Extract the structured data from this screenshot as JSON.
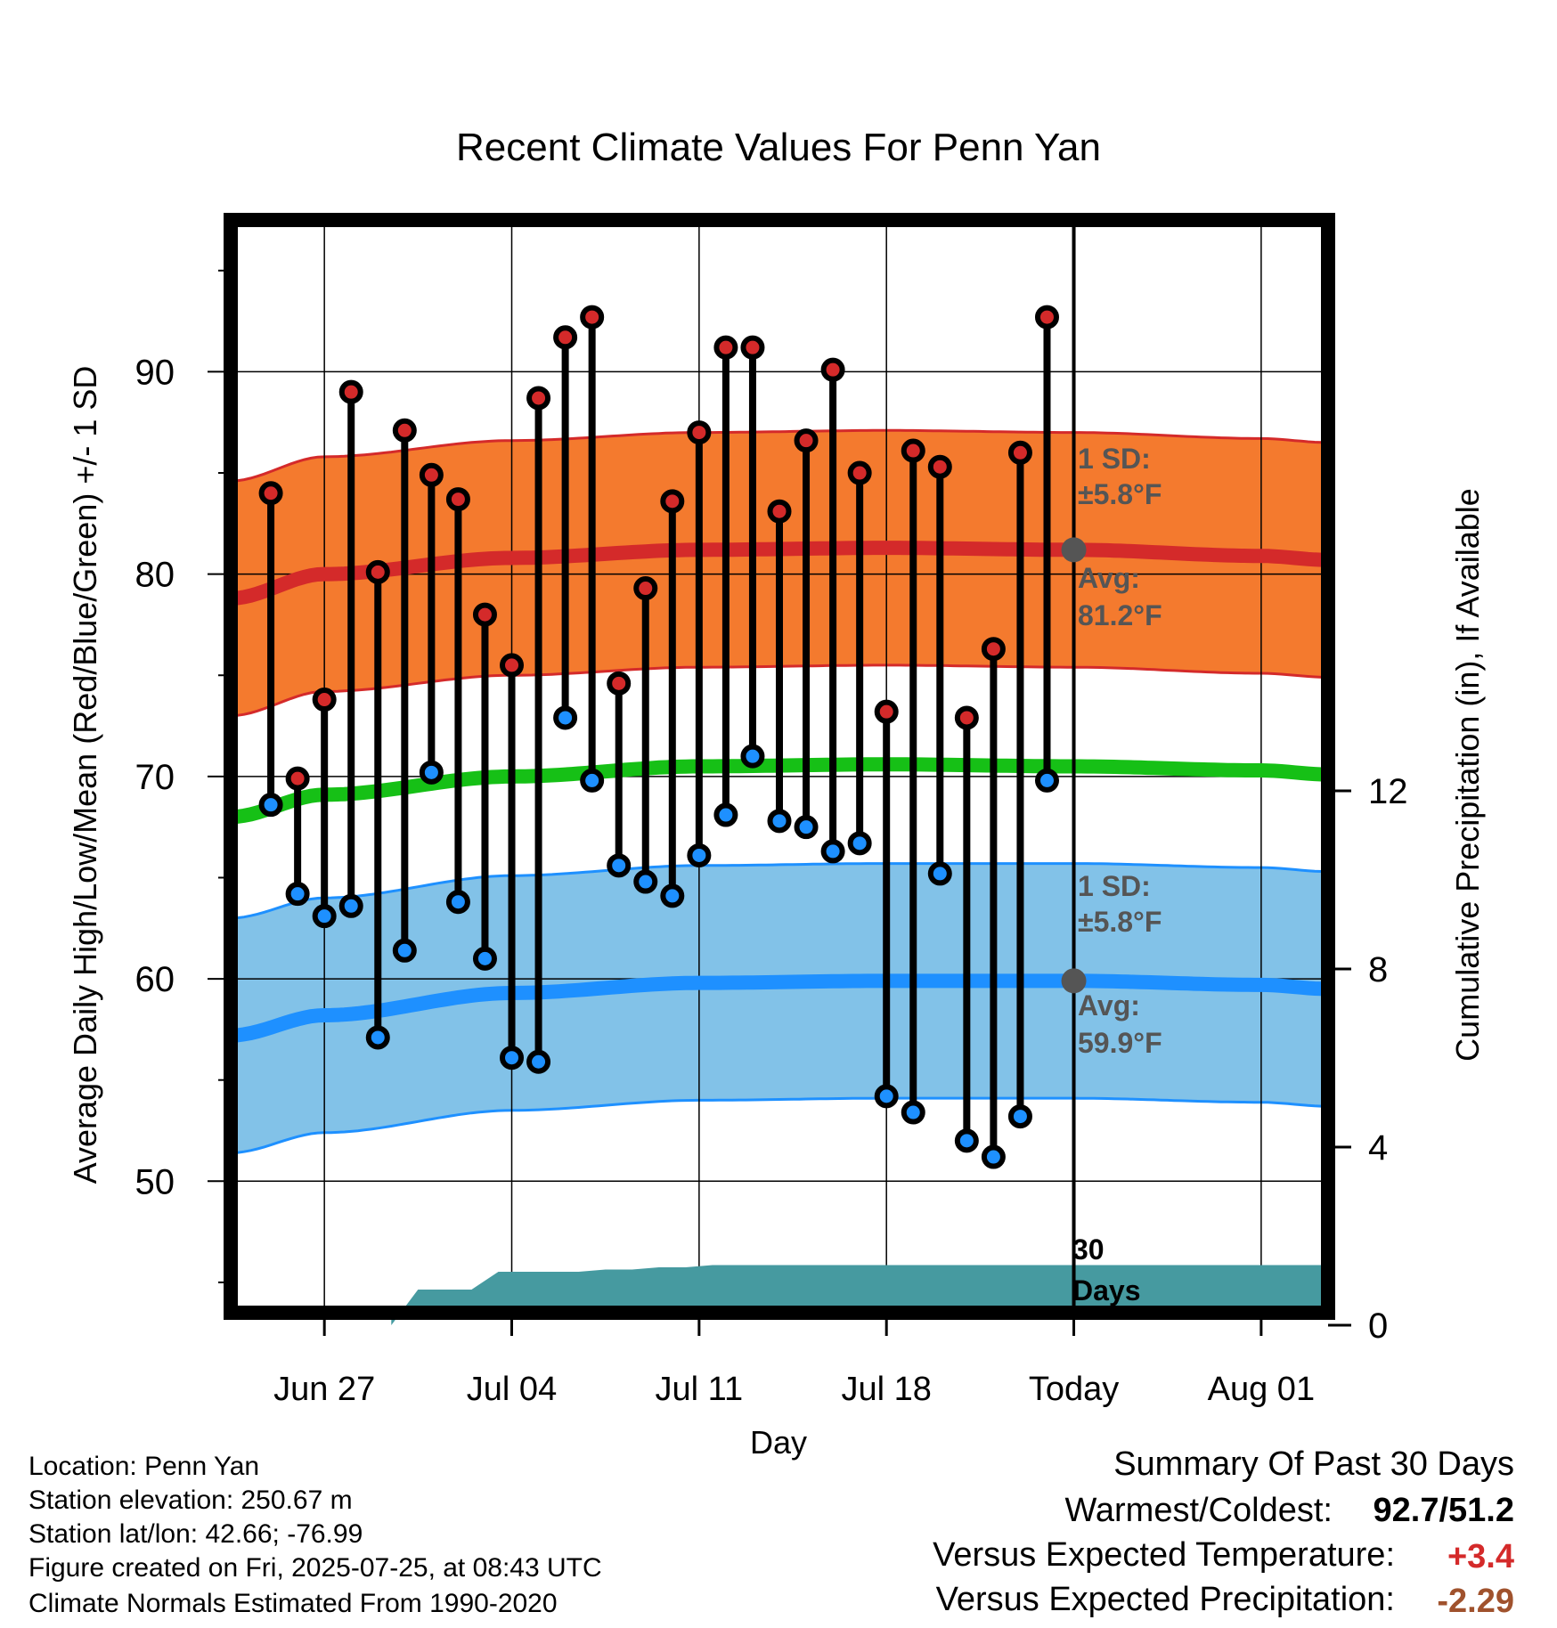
{
  "chart_data": {
    "type": "line",
    "title": "Recent Climate Values For Penn Yan",
    "xlabel": "Day",
    "ylabel": "Average Daily High/Low/Mean (Red/Blue/Green) +/- 1 SD",
    "y2label": "Cumulative Precipitation (in), If Available",
    "x_tick_labels": [
      "Jun 27",
      "Jul 04",
      "Jul 11",
      "Jul 18",
      "Today",
      "Aug 01"
    ],
    "y_tick_labels": [
      "50",
      "60",
      "70",
      "80",
      "90"
    ],
    "y2_tick_labels": [
      "0",
      "4",
      "8",
      "12"
    ],
    "ylim": [
      43.5,
      97.5
    ],
    "y2lim": [
      0,
      12
    ],
    "x_range_days": [
      -3.5,
      37.5
    ],
    "x_tick_days": [
      0,
      7,
      14,
      21,
      28,
      35
    ],
    "today_day": 28,
    "x_days": [
      -2,
      -1,
      0,
      1,
      2,
      3,
      4,
      5,
      6,
      7,
      8,
      9,
      10,
      11,
      12,
      13,
      14,
      15,
      16,
      17,
      18,
      19,
      20,
      21,
      22,
      23,
      24,
      25,
      26,
      27
    ],
    "series": [
      {
        "name": "High",
        "color": "#d42a2a",
        "values": [
          84.0,
          69.9,
          73.8,
          89.0,
          80.1,
          87.1,
          84.9,
          83.7,
          78.0,
          75.5,
          88.7,
          91.7,
          92.7,
          74.6,
          79.3,
          83.6,
          87.0,
          91.2,
          91.2,
          83.1,
          86.6,
          90.1,
          85.0,
          73.2,
          86.1,
          85.3,
          72.9,
          76.3,
          86.0,
          92.7
        ]
      },
      {
        "name": "Low",
        "color": "#1e90ff",
        "values": [
          68.6,
          64.2,
          63.1,
          63.6,
          57.1,
          61.4,
          70.2,
          63.8,
          61.0,
          56.1,
          55.9,
          72.9,
          69.8,
          65.6,
          64.8,
          64.1,
          66.1,
          68.1,
          71.0,
          67.8,
          67.5,
          66.3,
          66.7,
          54.2,
          53.4,
          65.2,
          52.0,
          51.2,
          53.2,
          69.8
        ]
      }
    ],
    "normals": {
      "days": [
        -3.5,
        0,
        7,
        14,
        21,
        28,
        35,
        37.5
      ],
      "high_avg": [
        78.8,
        80.0,
        80.8,
        81.2,
        81.3,
        81.2,
        80.9,
        80.7
      ],
      "low_avg": [
        57.2,
        58.2,
        59.3,
        59.8,
        59.9,
        59.9,
        59.7,
        59.5
      ],
      "mean_avg": [
        68.0,
        69.1,
        70.0,
        70.5,
        70.6,
        70.5,
        70.3,
        70.1
      ],
      "sd": 5.8,
      "high_color": "#d42a2a",
      "high_band_color": "#f47a2e",
      "low_color": "#1e90ff",
      "low_band_color": "#82c2e8",
      "mean_color": "#16c016"
    },
    "precip": {
      "color": "#469aa0",
      "days": [
        2.5,
        3.5,
        5.5,
        6.5,
        9.5,
        10.5,
        11.5,
        12.5,
        13.5,
        14.5,
        15.5,
        37.5
      ],
      "values": [
        0,
        0.8,
        0.8,
        1.2,
        1.2,
        1.25,
        1.25,
        1.3,
        1.3,
        1.35,
        1.35,
        1.35
      ]
    },
    "grid": true
  },
  "annotations": {
    "high_sd_line1": "1 SD:",
    "high_sd_line2": "±5.8°F",
    "high_avg_line1": "Avg:",
    "high_avg_line2": "81.2°F",
    "low_sd_line1": "1 SD:",
    "low_sd_line2": "±5.8°F",
    "low_avg_line1": "Avg:",
    "low_avg_line2": "59.9°F",
    "days_line1": "30",
    "days_line2": "Days"
  },
  "station_info": {
    "location": "Location: Penn Yan",
    "elevation": "Station elevation: 250.67 m",
    "latlon": "Station lat/lon: 42.66; -76.99",
    "created": "Figure created on Fri, 2025-07-25, at 08:43 UTC",
    "normals": "Climate Normals Estimated From 1990-2020"
  },
  "summary": {
    "heading": "Summary Of Past 30 Days",
    "warmest_label": "Warmest/Coldest:",
    "warmest_value": "92.7/51.2",
    "temp_label": "Versus Expected Temperature:",
    "temp_value": "+3.4",
    "temp_color": "#d42a2a",
    "precip_label": "Versus Expected Precipitation:",
    "precip_value": "-2.29",
    "precip_color": "#a0522d"
  }
}
